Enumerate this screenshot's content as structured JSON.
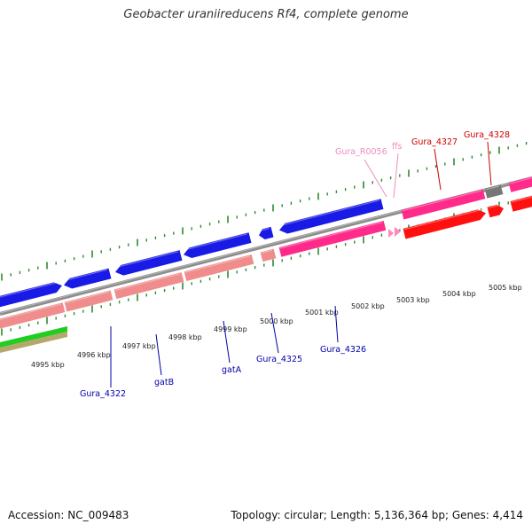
{
  "title": "Geobacter uraniireducens Rf4, complete genome",
  "footer": {
    "accession": "Accession: NC_009483",
    "summary": "Topology: circular; Length: 5,136,364 bp; Genes: 4,414"
  },
  "colors": {
    "backbone": "#8c8c8c",
    "forward_cds": "#1a1ae6",
    "reverse_cds": "#ff2a8a",
    "pseudo": "#f08c8c",
    "highlight": "#ff1010",
    "rna_gene": "#ff88bb",
    "gray_feature": "#777777",
    "green_track": "#22cc22",
    "olive_track": "#b4a86a",
    "tick": "#2e8b2e",
    "label_blue": "#0000aa",
    "label_red": "#cc0000",
    "label_pink": "#f08cc0"
  },
  "ticks": {
    "labels": [
      "4995 kbp",
      "4996 kbp",
      "4997 kbp",
      "4998 kbp",
      "4999 kbp",
      "5000 kbp",
      "5001 kbp",
      "5002 kbp",
      "5003 kbp",
      "5004 kbp",
      "5005 kbp"
    ]
  },
  "gene_labels": [
    {
      "text": "Gura_4322",
      "color": "label_blue"
    },
    {
      "text": "gatB",
      "color": "label_blue"
    },
    {
      "text": "gatA",
      "color": "label_blue"
    },
    {
      "text": "Gura_4325",
      "color": "label_blue"
    },
    {
      "text": "Gura_4326",
      "color": "label_blue"
    },
    {
      "text": "Gura_R0056",
      "color": "label_pink"
    },
    {
      "text": "ffs",
      "color": "label_pink"
    },
    {
      "text": "Gura_4327",
      "color": "label_red"
    },
    {
      "text": "Gura_4328",
      "color": "label_red"
    }
  ]
}
